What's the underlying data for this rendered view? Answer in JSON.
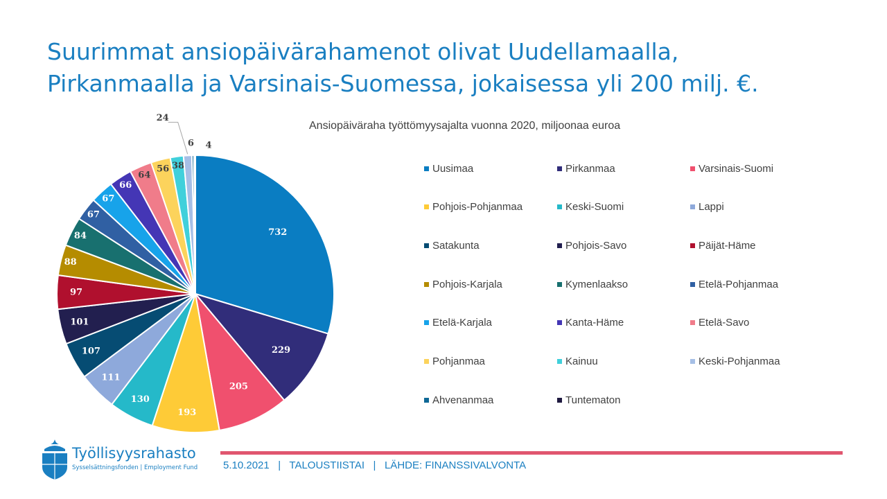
{
  "slide": {
    "title_line1": "Suurimmat ansiopäivärahamenot olivat Uudellamaalla,",
    "title_line2": "Pirkanmaalla ja Varsinais-Suomessa, jokaisessa yli 200 milj. €."
  },
  "chart_data": {
    "type": "pie",
    "title": "Ansiopäiväraha työttömyysajalta vuonna 2020, miljoonaa euroa",
    "legend_position": "right",
    "categories": [
      "Uusimaa",
      "Pirkanmaa",
      "Varsinais-Suomi",
      "Pohjois-Pohjanmaa",
      "Keski-Suomi",
      "Lappi",
      "Satakunta",
      "Pohjois-Savo",
      "Päijät-Häme",
      "Pohjois-Karjala",
      "Kymenlaakso",
      "Etelä-Pohjanmaa",
      "Etelä-Karjala",
      "Kanta-Häme",
      "Etelä-Savo",
      "Pohjanmaa",
      "Kainuu",
      "Keski-Pohjanmaa",
      "Ahvenanmaa",
      "Tuntematon"
    ],
    "values": [
      732,
      229,
      205,
      193,
      130,
      111,
      107,
      101,
      97,
      88,
      84,
      67,
      67,
      66,
      64,
      56,
      38,
      24,
      6,
      4
    ],
    "data_labels": [
      "732",
      "229",
      "205",
      "193",
      "130",
      "111",
      "107",
      "101",
      "97",
      "88",
      "84",
      "67",
      "67",
      "66",
      "64",
      "56",
      "38",
      "24",
      "6",
      "4"
    ],
    "colors": [
      "#0a7dc2",
      "#312d7a",
      "#f0506e",
      "#fecb37",
      "#25b9c9",
      "#8ea9db",
      "#064c73",
      "#221f4f",
      "#b0102e",
      "#b58c00",
      "#18706f",
      "#3060a3",
      "#17a3ea",
      "#4436b5",
      "#f07c8a",
      "#fcd35c",
      "#40d0db",
      "#a6bfe6",
      "#0f6896",
      "#1f1a40"
    ],
    "label_text_colors": [
      "#ffffff",
      "#ffffff",
      "#ffffff",
      "#ffffff",
      "#ffffff",
      "#ffffff",
      "#ffffff",
      "#ffffff",
      "#ffffff",
      "#ffffff",
      "#ffffff",
      "#ffffff",
      "#ffffff",
      "#ffffff",
      "#404040",
      "#404040",
      "#404040",
      "#404040",
      "#404040",
      "#404040"
    ]
  },
  "footer": {
    "date": "5.10.2021",
    "separator": "|",
    "series": "TALOUSTIISTAI",
    "source": "LÄHDE: FINANSSIVALVONTA"
  },
  "logo": {
    "name": "Työllisyysrahasto",
    "subtitle": "Sysselsättningsfonden | Employment Fund",
    "icon": "acorn-shield-icon",
    "color": "#1a7fc1"
  },
  "accent_color": "#e0566f"
}
